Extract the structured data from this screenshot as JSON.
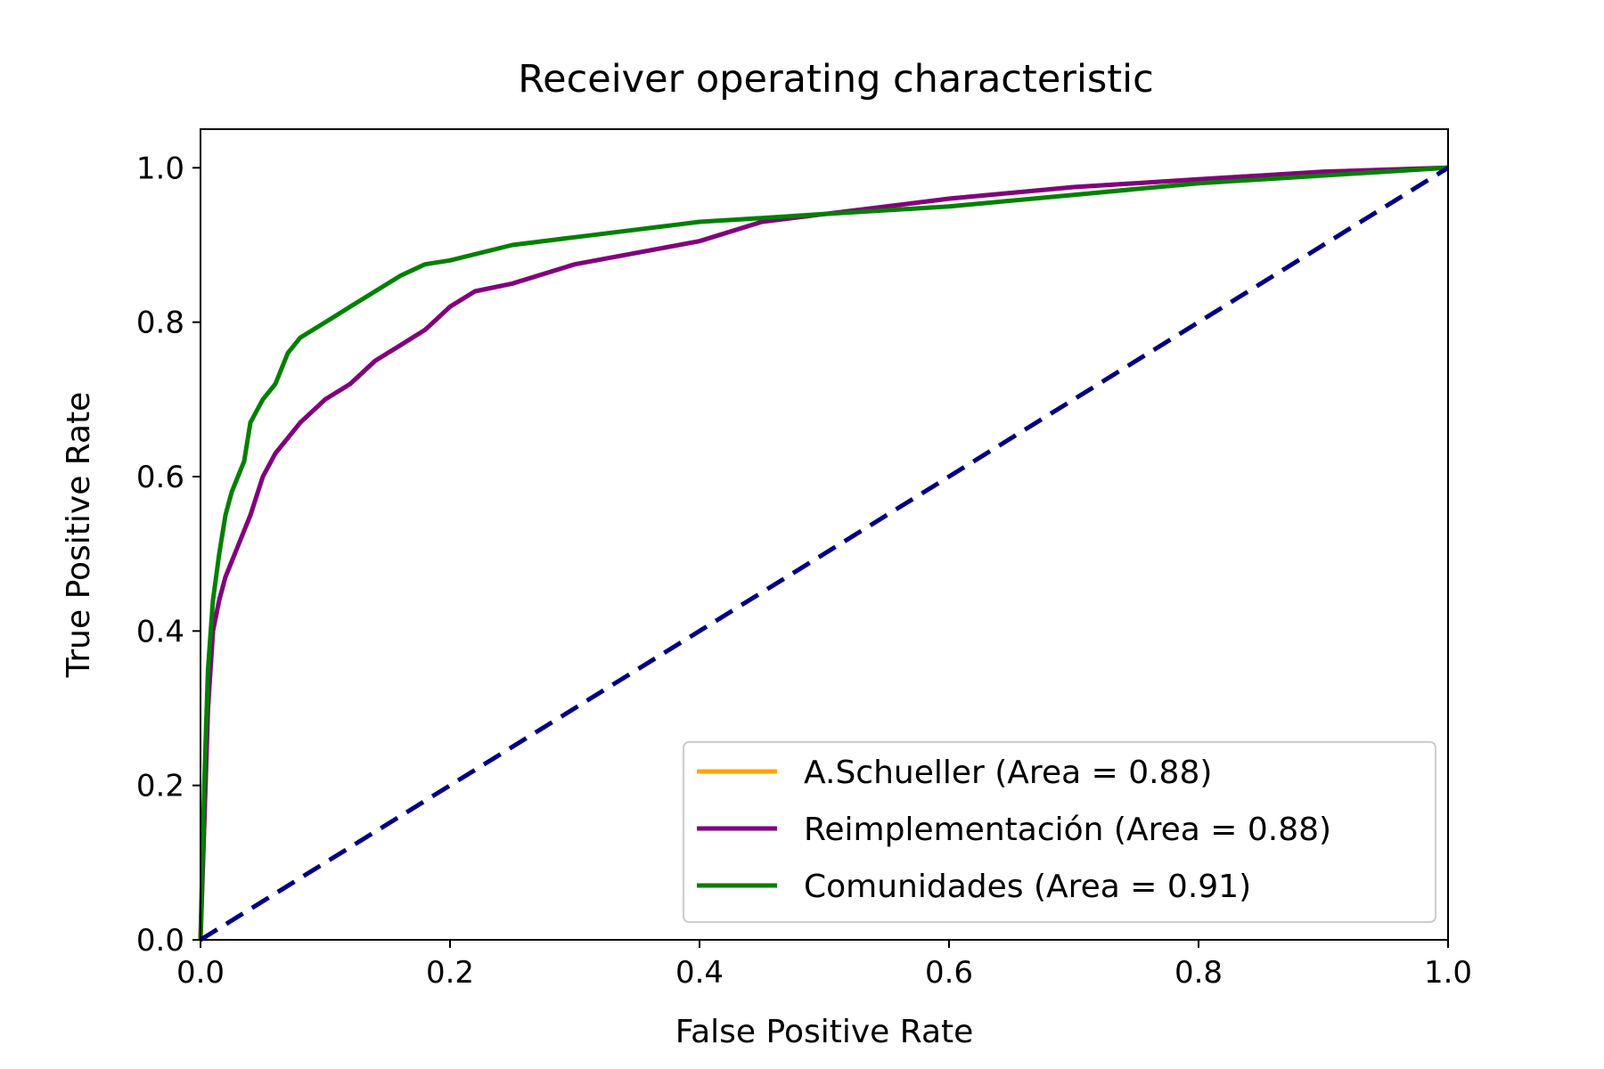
{
  "chart_data": {
    "type": "line",
    "title": "Receiver operating characteristic",
    "xlabel": "False Positive Rate",
    "ylabel": "True Positive Rate",
    "xlim": [
      0.0,
      1.0
    ],
    "ylim": [
      0.0,
      1.05
    ],
    "xticks": [
      "0.0",
      "0.2",
      "0.4",
      "0.6",
      "0.8",
      "1.0"
    ],
    "yticks": [
      "0.0",
      "0.2",
      "0.4",
      "0.6",
      "0.8",
      "1.0"
    ],
    "grid": false,
    "legend_position": "lower-right",
    "series": [
      {
        "name": "A.Schueller (Area = 0.88)",
        "color": "#ffa500",
        "x": [
          0.0,
          0.003,
          0.006,
          0.01,
          0.015,
          0.02,
          0.03,
          0.04,
          0.05,
          0.06,
          0.07,
          0.08,
          0.1,
          0.12,
          0.14,
          0.16,
          0.18,
          0.2,
          0.22,
          0.25,
          0.3,
          0.35,
          0.4,
          0.45,
          0.5,
          0.55,
          0.6,
          0.7,
          0.8,
          0.9,
          1.0
        ],
        "y": [
          0.0,
          0.15,
          0.3,
          0.4,
          0.44,
          0.47,
          0.51,
          0.55,
          0.6,
          0.63,
          0.65,
          0.67,
          0.7,
          0.72,
          0.75,
          0.77,
          0.79,
          0.82,
          0.84,
          0.85,
          0.875,
          0.89,
          0.905,
          0.93,
          0.94,
          0.95,
          0.96,
          0.975,
          0.985,
          0.995,
          1.0
        ]
      },
      {
        "name": "Reimplementación (Area = 0.88)",
        "color": "#800080",
        "x": [
          0.0,
          0.003,
          0.006,
          0.01,
          0.015,
          0.02,
          0.03,
          0.04,
          0.05,
          0.06,
          0.07,
          0.08,
          0.1,
          0.12,
          0.14,
          0.16,
          0.18,
          0.2,
          0.22,
          0.25,
          0.3,
          0.35,
          0.4,
          0.45,
          0.5,
          0.55,
          0.6,
          0.7,
          0.8,
          0.9,
          1.0
        ],
        "y": [
          0.0,
          0.15,
          0.3,
          0.4,
          0.44,
          0.47,
          0.51,
          0.55,
          0.6,
          0.63,
          0.65,
          0.67,
          0.7,
          0.72,
          0.75,
          0.77,
          0.79,
          0.82,
          0.84,
          0.85,
          0.875,
          0.89,
          0.905,
          0.93,
          0.94,
          0.95,
          0.96,
          0.975,
          0.985,
          0.995,
          1.0
        ]
      },
      {
        "name": "Comunidades (Area = 0.91)",
        "color": "#008000",
        "x": [
          0.0,
          0.003,
          0.006,
          0.01,
          0.015,
          0.02,
          0.025,
          0.03,
          0.035,
          0.04,
          0.05,
          0.06,
          0.07,
          0.08,
          0.1,
          0.12,
          0.14,
          0.16,
          0.18,
          0.2,
          0.25,
          0.3,
          0.35,
          0.4,
          0.45,
          0.5,
          0.6,
          0.7,
          0.8,
          0.9,
          1.0
        ],
        "y": [
          0.0,
          0.2,
          0.35,
          0.44,
          0.5,
          0.55,
          0.58,
          0.6,
          0.62,
          0.67,
          0.7,
          0.72,
          0.76,
          0.78,
          0.8,
          0.82,
          0.84,
          0.86,
          0.875,
          0.88,
          0.9,
          0.91,
          0.92,
          0.93,
          0.935,
          0.94,
          0.95,
          0.965,
          0.98,
          0.99,
          1.0
        ]
      }
    ],
    "reference_line": {
      "x": [
        0.0,
        1.0
      ],
      "y": [
        0.0,
        1.0
      ],
      "color": "#000080",
      "style": "dashed"
    }
  }
}
